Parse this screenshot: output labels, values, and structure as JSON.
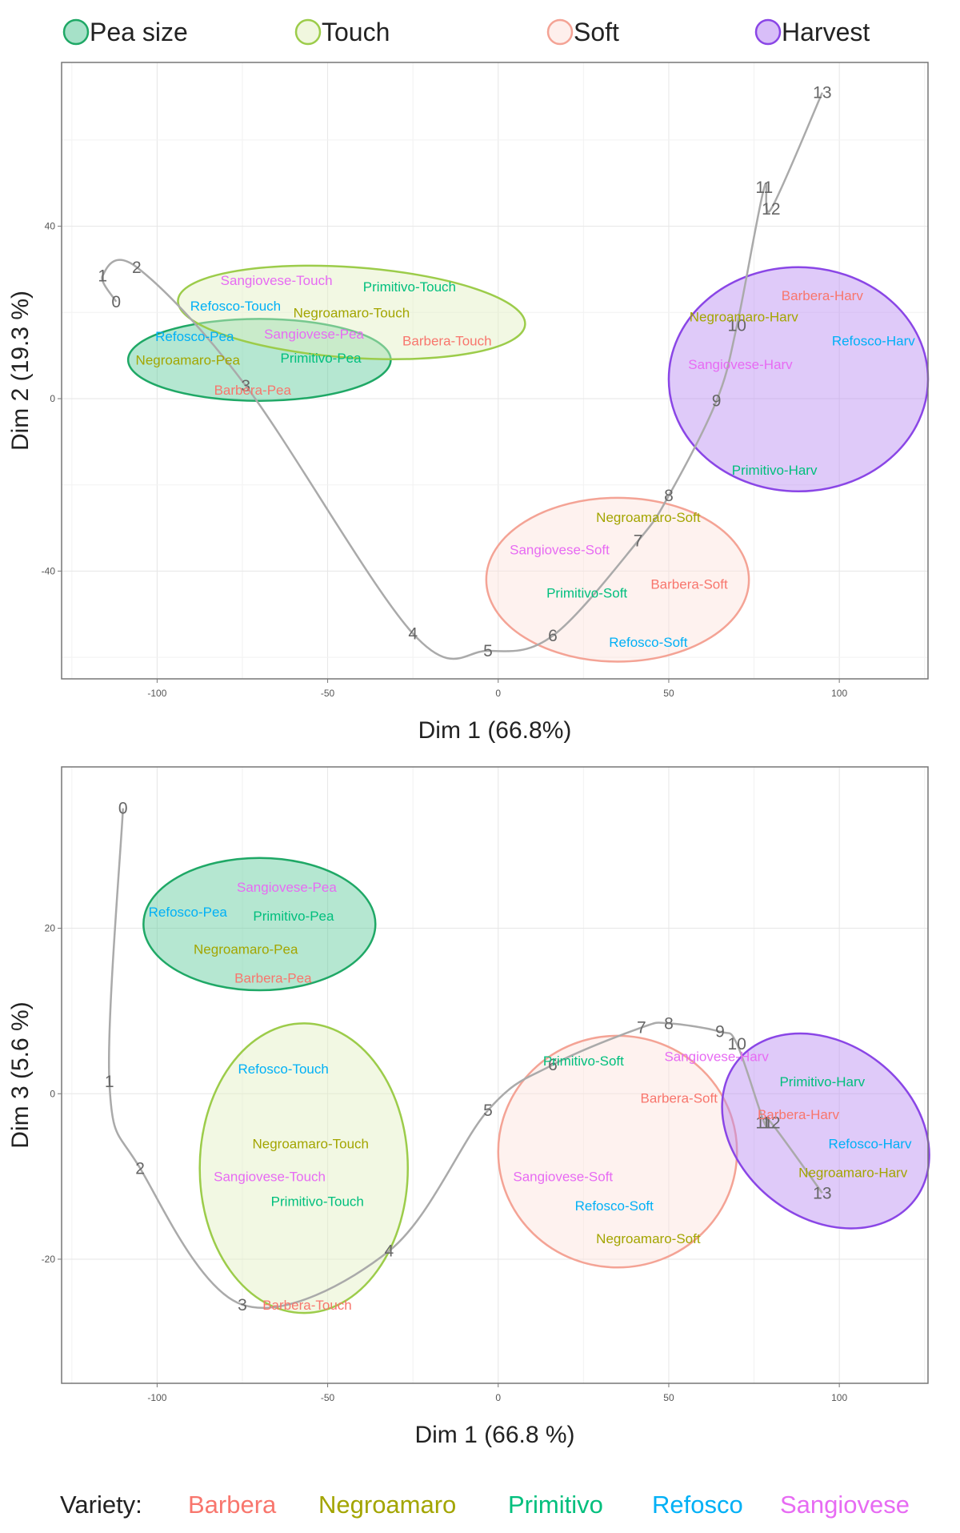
{
  "legend_stage": [
    {
      "label": "Pea size",
      "fill": "#5cc99a",
      "stroke": "#1fa866"
    },
    {
      "label": "Touch",
      "fill": "#e3f0c2",
      "stroke": "#9ccc4a"
    },
    {
      "label": "Soft",
      "fill": "#fde2dc",
      "stroke": "#f4a395"
    },
    {
      "label": "Harvest",
      "fill": "#b889f2",
      "stroke": "#8a46e6"
    }
  ],
  "legend_variety": {
    "title": "Variety:",
    "items": [
      {
        "label": "Barbera",
        "color": "#f8766d"
      },
      {
        "label": "Negroamaro",
        "color": "#a3a500"
      },
      {
        "label": "Primitivo",
        "color": "#00bf7d"
      },
      {
        "label": "Refosco",
        "color": "#00b0f6"
      },
      {
        "label": "Sangiovese",
        "color": "#e76bf3"
      }
    ]
  },
  "chart_data": [
    {
      "type": "scatter",
      "xlabel": "Dim 1 (66.8%)",
      "ylabel": "Dim 2 (19.3 %)",
      "xlim": [
        -128,
        126
      ],
      "ylim": [
        -65,
        78
      ],
      "xticks": [
        -100,
        -50,
        0,
        50,
        100
      ],
      "yticks": [
        -40,
        0,
        40
      ],
      "grid": true,
      "points": [
        {
          "label": "Sangiovese-Touch",
          "variety": "Sangiovese",
          "x": -65,
          "y": 27.5
        },
        {
          "label": "Primitivo-Touch",
          "variety": "Primitivo",
          "x": -26,
          "y": 26
        },
        {
          "label": "Refosco-Touch",
          "variety": "Refosco",
          "x": -77,
          "y": 21.5
        },
        {
          "label": "Negroamaro-Touch",
          "variety": "Negroamaro",
          "x": -43,
          "y": 20
        },
        {
          "label": "Refosco-Pea",
          "variety": "Refosco",
          "x": -89,
          "y": 14.5
        },
        {
          "label": "Sangiovese-Pea",
          "variety": "Sangiovese",
          "x": -54,
          "y": 15
        },
        {
          "label": "Barbera-Touch",
          "variety": "Barbera",
          "x": -15,
          "y": 13.5
        },
        {
          "label": "Negroamaro-Pea",
          "variety": "Negroamaro",
          "x": -91,
          "y": 9
        },
        {
          "label": "Primitivo-Pea",
          "variety": "Primitivo",
          "x": -52,
          "y": 9.5
        },
        {
          "label": "Barbera-Pea",
          "variety": "Barbera",
          "x": -72,
          "y": 2
        },
        {
          "label": "Barbera-Harv",
          "variety": "Barbera",
          "x": 95,
          "y": 24
        },
        {
          "label": "Negroamaro-Harv",
          "variety": "Negroamaro",
          "x": 72,
          "y": 19
        },
        {
          "label": "Refosco-Harv",
          "variety": "Refosco",
          "x": 110,
          "y": 13.5
        },
        {
          "label": "Sangiovese-Harv",
          "variety": "Sangiovese",
          "x": 71,
          "y": 8
        },
        {
          "label": "Primitivo-Harv",
          "variety": "Primitivo",
          "x": 81,
          "y": -16.5
        },
        {
          "label": "Negroamaro-Soft",
          "variety": "Negroamaro",
          "x": 44,
          "y": -27.5
        },
        {
          "label": "Sangiovese-Soft",
          "variety": "Sangiovese",
          "x": 18,
          "y": -35
        },
        {
          "label": "Primitivo-Soft",
          "variety": "Primitivo",
          "x": 26,
          "y": -45
        },
        {
          "label": "Barbera-Soft",
          "variety": "Barbera",
          "x": 56,
          "y": -43
        },
        {
          "label": "Refosco-Soft",
          "variety": "Refosco",
          "x": 44,
          "y": -56.5
        }
      ],
      "ellipses": [
        {
          "stage": "Pea size",
          "cx": -70,
          "cy": 9,
          "rx": 38.5,
          "ry": 9.5,
          "rotate": 0
        },
        {
          "stage": "Touch",
          "cx": -43,
          "cy": 20,
          "rx": 51,
          "ry": 10.5,
          "rotate": 4
        },
        {
          "stage": "Soft",
          "cx": 35,
          "cy": -42,
          "rx": 38.5,
          "ry": 19,
          "rotate": 0
        },
        {
          "stage": "Harvest",
          "cx": 88,
          "cy": 4.5,
          "rx": 38,
          "ry": 26,
          "rotate": 0
        }
      ],
      "trajectory": [
        {
          "t": "0",
          "x": -112,
          "y": 22.5
        },
        {
          "t": "1",
          "x": -116,
          "y": 28.5
        },
        {
          "t": "2",
          "x": -106,
          "y": 30.5
        },
        {
          "t": "3",
          "x": -74,
          "y": 3
        },
        {
          "t": "4",
          "x": -25,
          "y": -54.5
        },
        {
          "t": "5",
          "x": -3,
          "y": -58.5
        },
        {
          "t": "6",
          "x": 16,
          "y": -55
        },
        {
          "t": "7",
          "x": 41,
          "y": -33
        },
        {
          "t": "8",
          "x": 50,
          "y": -22.5
        },
        {
          "t": "9",
          "x": 64,
          "y": -0.5
        },
        {
          "t": "10",
          "x": 70,
          "y": 17
        },
        {
          "t": "11",
          "x": 78,
          "y": 49
        },
        {
          "t": "12",
          "x": 80,
          "y": 44
        },
        {
          "t": "13",
          "x": 95,
          "y": 71
        }
      ]
    },
    {
      "type": "scatter",
      "xlabel": "Dim 1 (66.8 %)",
      "ylabel": "Dim 3 (5.6 %)",
      "xlim": [
        -128,
        126
      ],
      "ylim": [
        -35,
        39.5
      ],
      "xticks": [
        -100,
        -50,
        0,
        50,
        100
      ],
      "yticks": [
        -20,
        0,
        20
      ],
      "grid": true,
      "points": [
        {
          "label": "Sangiovese-Pea",
          "variety": "Sangiovese",
          "x": -62,
          "y": 25
        },
        {
          "label": "Refosco-Pea",
          "variety": "Refosco",
          "x": -91,
          "y": 22
        },
        {
          "label": "Primitivo-Pea",
          "variety": "Primitivo",
          "x": -60,
          "y": 21.5
        },
        {
          "label": "Negroamaro-Pea",
          "variety": "Negroamaro",
          "x": -74,
          "y": 17.5
        },
        {
          "label": "Barbera-Pea",
          "variety": "Barbera",
          "x": -66,
          "y": 14
        },
        {
          "label": "Refosco-Touch",
          "variety": "Refosco",
          "x": -63,
          "y": 3
        },
        {
          "label": "Negroamaro-Touch",
          "variety": "Negroamaro",
          "x": -55,
          "y": -6
        },
        {
          "label": "Sangiovese-Touch",
          "variety": "Sangiovese",
          "x": -67,
          "y": -10
        },
        {
          "label": "Primitivo-Touch",
          "variety": "Primitivo",
          "x": -53,
          "y": -13
        },
        {
          "label": "Barbera-Touch",
          "variety": "Barbera",
          "x": -56,
          "y": -25.5
        },
        {
          "label": "Primitivo-Soft",
          "variety": "Primitivo",
          "x": 25,
          "y": 4
        },
        {
          "label": "Sangiovese-Harv",
          "variety": "Sangiovese",
          "x": 64,
          "y": 4.5
        },
        {
          "label": "Barbera-Soft",
          "variety": "Barbera",
          "x": 53,
          "y": -0.5
        },
        {
          "label": "Sangiovese-Soft",
          "variety": "Sangiovese",
          "x": 19,
          "y": -10
        },
        {
          "label": "Refosco-Soft",
          "variety": "Refosco",
          "x": 34,
          "y": -13.5
        },
        {
          "label": "Negroamaro-Soft",
          "variety": "Negroamaro",
          "x": 44,
          "y": -17.5
        },
        {
          "label": "Primitivo-Harv",
          "variety": "Primitivo",
          "x": 95,
          "y": 1.5
        },
        {
          "label": "Barbera-Harv",
          "variety": "Barbera",
          "x": 88,
          "y": -2.5
        },
        {
          "label": "Refosco-Harv",
          "variety": "Refosco",
          "x": 109,
          "y": -6
        },
        {
          "label": "Negroamaro-Harv",
          "variety": "Negroamaro",
          "x": 104,
          "y": -9.5
        }
      ],
      "ellipses": [
        {
          "stage": "Pea size",
          "cx": -70,
          "cy": 20.5,
          "rx": 34,
          "ry": 8,
          "rotate": 0
        },
        {
          "stage": "Touch",
          "cx": -57,
          "cy": -9,
          "rx": 30.5,
          "ry": 17.5,
          "rotate": 0
        },
        {
          "stage": "Soft",
          "cx": 35,
          "cy": -7,
          "rx": 35,
          "ry": 14,
          "rotate": 0
        },
        {
          "stage": "Harvest",
          "cx": 96,
          "cy": -4.5,
          "rx": 33,
          "ry": 10.5,
          "rotate": 38
        }
      ],
      "trajectory": [
        {
          "t": "0",
          "x": -110,
          "y": 34.5
        },
        {
          "t": "1",
          "x": -114,
          "y": 1.5
        },
        {
          "t": "2",
          "x": -105,
          "y": -9
        },
        {
          "t": "3",
          "x": -75,
          "y": -25.5
        },
        {
          "t": "4",
          "x": -32,
          "y": -19
        },
        {
          "t": "5",
          "x": -3,
          "y": -2
        },
        {
          "t": "6",
          "x": 16,
          "y": 3.5
        },
        {
          "t": "7",
          "x": 42,
          "y": 8
        },
        {
          "t": "8",
          "x": 50,
          "y": 8.5
        },
        {
          "t": "9",
          "x": 65,
          "y": 7.5
        },
        {
          "t": "10",
          "x": 70,
          "y": 6
        },
        {
          "t": "11",
          "x": 78,
          "y": -3.5
        },
        {
          "t": "12",
          "x": 80,
          "y": -3.5
        },
        {
          "t": "13",
          "x": 95,
          "y": -12
        }
      ]
    }
  ]
}
